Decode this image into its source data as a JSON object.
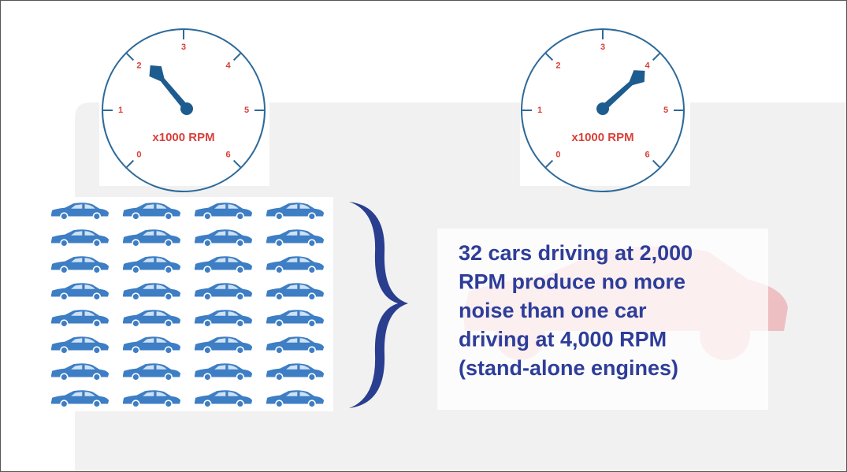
{
  "gauges": [
    {
      "scale": [
        "0",
        "1",
        "2",
        "3",
        "4",
        "5",
        "6"
      ],
      "unit": "x1000 RPM"
    },
    {
      "scale": [
        "0",
        "1",
        "2",
        "3",
        "4",
        "5",
        "6"
      ],
      "unit": "x1000 RPM"
    }
  ],
  "statement": {
    "lines": [
      "32 cars driving at 2,000",
      "RPM produce no more",
      "noise than one car",
      "driving at 4,000 RPM",
      "(stand-alone engines)"
    ]
  }
}
